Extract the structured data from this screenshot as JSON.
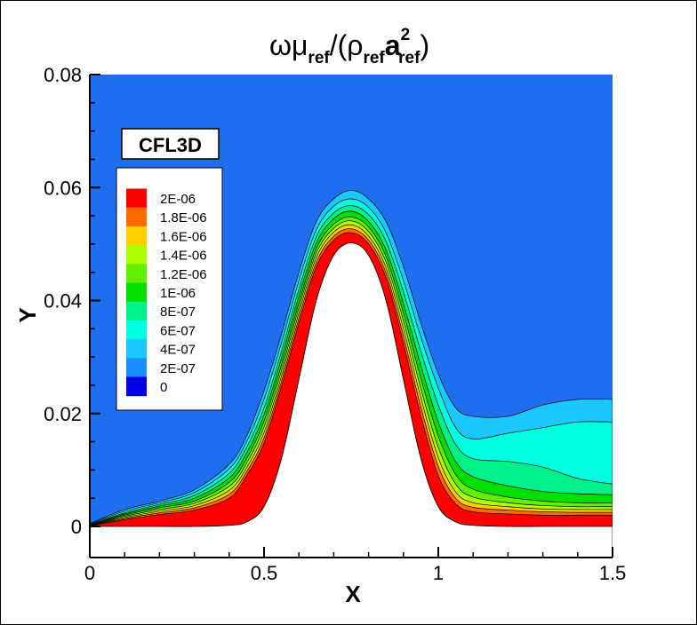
{
  "chart_data": {
    "type": "contour",
    "title": {
      "parts": [
        {
          "text": "ωμ",
          "style": "main"
        },
        {
          "text": "ref",
          "style": "sub"
        },
        {
          "text": "/(ρ",
          "style": "main"
        },
        {
          "text": "ref",
          "style": "sub"
        },
        {
          "text": "a",
          "style": "bold"
        },
        {
          "text": "2",
          "style": "sup"
        },
        {
          "text": "ref",
          "style": "sub"
        },
        {
          "text": ")",
          "style": "main"
        }
      ]
    },
    "xlabel": "X",
    "ylabel": "Y",
    "xlim": [
      0,
      1.5
    ],
    "ylim": [
      0,
      0.08
    ],
    "xticks": [
      {
        "value": 0,
        "label": "0"
      },
      {
        "value": 0.5,
        "label": "0.5"
      },
      {
        "value": 1,
        "label": "1"
      },
      {
        "value": 1.5,
        "label": "1.5"
      }
    ],
    "yticks": [
      {
        "value": 0,
        "label": "0"
      },
      {
        "value": 0.02,
        "label": "0.02"
      },
      {
        "value": 0.04,
        "label": "0.04"
      },
      {
        "value": 0.06,
        "label": "0.06"
      },
      {
        "value": 0.08,
        "label": "0.08"
      }
    ],
    "annotation": "CFL3D",
    "legend": {
      "placement": "upper-left",
      "levels": [
        {
          "label": "2E-06",
          "value": 2e-06,
          "color": "#ff0000"
        },
        {
          "label": "1.8E-06",
          "value": 1.8e-06,
          "color": "#ff6a00"
        },
        {
          "label": "1.6E-06",
          "value": 1.6e-06,
          "color": "#ffd000"
        },
        {
          "label": "1.4E-06",
          "value": 1.4e-06,
          "color": "#b0ff00"
        },
        {
          "label": "1.2E-06",
          "value": 1.2e-06,
          "color": "#60f000"
        },
        {
          "label": "1E-06",
          "value": 1e-06,
          "color": "#00e000"
        },
        {
          "label": "8E-07",
          "value": 8e-07,
          "color": "#00f08a"
        },
        {
          "label": "6E-07",
          "value": 6e-07,
          "color": "#00ffe0"
        },
        {
          "label": "4E-07",
          "value": 4e-07,
          "color": "#1ac8ff"
        },
        {
          "label": "2E-07",
          "value": 2e-07,
          "color": "#1a8cff"
        },
        {
          "label": "0",
          "value": 0,
          "color": "#0000e0"
        }
      ]
    },
    "background_color": "#1f6eef",
    "wall_profile": {
      "x": [
        0,
        0.1,
        0.2,
        0.3,
        0.4,
        0.45,
        0.5,
        0.55,
        0.6,
        0.65,
        0.7,
        0.75,
        0.8,
        0.85,
        0.9,
        0.95,
        1.0,
        1.05,
        1.1,
        1.2,
        1.3,
        1.4,
        1.5
      ],
      "y": [
        0,
        0,
        0,
        0,
        0.0002,
        0.0008,
        0.0035,
        0.012,
        0.026,
        0.04,
        0.048,
        0.0502,
        0.048,
        0.04,
        0.026,
        0.012,
        0.0035,
        0.0008,
        0.0002,
        0,
        0,
        0,
        0
      ]
    },
    "contour_bands": [
      {
        "level": "2E-07",
        "color": "#1ac8ff",
        "top": [
          [
            0,
            0.0005
          ],
          [
            0.1,
            0.003
          ],
          [
            0.2,
            0.0045
          ],
          [
            0.3,
            0.0065
          ],
          [
            0.4,
            0.011
          ],
          [
            0.45,
            0.016
          ],
          [
            0.5,
            0.024
          ],
          [
            0.55,
            0.034
          ],
          [
            0.6,
            0.045
          ],
          [
            0.65,
            0.054
          ],
          [
            0.7,
            0.058
          ],
          [
            0.75,
            0.0595
          ],
          [
            0.8,
            0.058
          ],
          [
            0.85,
            0.054
          ],
          [
            0.9,
            0.046
          ],
          [
            0.95,
            0.036
          ],
          [
            1.0,
            0.027
          ],
          [
            1.05,
            0.021
          ],
          [
            1.1,
            0.0195
          ],
          [
            1.2,
            0.0195
          ],
          [
            1.3,
            0.0215
          ],
          [
            1.4,
            0.0225
          ],
          [
            1.5,
            0.0225
          ]
        ]
      },
      {
        "level": "4E-07",
        "color": "#00ffe0",
        "top": [
          [
            0,
            0.0004
          ],
          [
            0.1,
            0.0027
          ],
          [
            0.2,
            0.0042
          ],
          [
            0.3,
            0.006
          ],
          [
            0.4,
            0.0102
          ],
          [
            0.45,
            0.015
          ],
          [
            0.5,
            0.0225
          ],
          [
            0.55,
            0.0325
          ],
          [
            0.6,
            0.0435
          ],
          [
            0.65,
            0.0525
          ],
          [
            0.7,
            0.0567
          ],
          [
            0.75,
            0.058
          ],
          [
            0.8,
            0.0565
          ],
          [
            0.85,
            0.052
          ],
          [
            0.9,
            0.0435
          ],
          [
            0.95,
            0.0335
          ],
          [
            1.0,
            0.0245
          ],
          [
            1.05,
            0.0175
          ],
          [
            1.1,
            0.0155
          ],
          [
            1.2,
            0.0165
          ],
          [
            1.3,
            0.0175
          ],
          [
            1.4,
            0.0185
          ],
          [
            1.5,
            0.0185
          ]
        ]
      },
      {
        "level": "6E-07",
        "color": "#00f08a",
        "top": [
          [
            0,
            0.0003
          ],
          [
            0.1,
            0.0024
          ],
          [
            0.2,
            0.0039
          ],
          [
            0.3,
            0.0055
          ],
          [
            0.4,
            0.0094
          ],
          [
            0.45,
            0.014
          ],
          [
            0.5,
            0.021
          ],
          [
            0.55,
            0.031
          ],
          [
            0.6,
            0.042
          ],
          [
            0.65,
            0.0513
          ],
          [
            0.7,
            0.0555
          ],
          [
            0.75,
            0.0568
          ],
          [
            0.8,
            0.0552
          ],
          [
            0.85,
            0.0505
          ],
          [
            0.9,
            0.0415
          ],
          [
            0.95,
            0.031
          ],
          [
            1.0,
            0.0215
          ],
          [
            1.05,
            0.0145
          ],
          [
            1.1,
            0.012
          ],
          [
            1.2,
            0.0115
          ],
          [
            1.3,
            0.0105
          ],
          [
            1.4,
            0.0085
          ],
          [
            1.5,
            0.0075
          ]
        ]
      },
      {
        "level": "8E-07",
        "color": "#00e000",
        "top": [
          [
            0,
            0.00025
          ],
          [
            0.1,
            0.0022
          ],
          [
            0.2,
            0.0036
          ],
          [
            0.3,
            0.005
          ],
          [
            0.4,
            0.0086
          ],
          [
            0.45,
            0.013
          ],
          [
            0.5,
            0.0198
          ],
          [
            0.55,
            0.0298
          ],
          [
            0.6,
            0.0408
          ],
          [
            0.65,
            0.0502
          ],
          [
            0.7,
            0.0545
          ],
          [
            0.75,
            0.0558
          ],
          [
            0.8,
            0.054
          ],
          [
            0.85,
            0.049
          ],
          [
            0.9,
            0.0395
          ],
          [
            0.95,
            0.0285
          ],
          [
            1.0,
            0.0185
          ],
          [
            1.05,
            0.0115
          ],
          [
            1.1,
            0.0088
          ],
          [
            1.2,
            0.0072
          ],
          [
            1.3,
            0.0062
          ],
          [
            1.4,
            0.0058
          ],
          [
            1.5,
            0.0056
          ]
        ]
      },
      {
        "level": "1E-06",
        "color": "#60f000",
        "top": [
          [
            0,
            0.0002
          ],
          [
            0.1,
            0.002
          ],
          [
            0.2,
            0.0033
          ],
          [
            0.3,
            0.0045
          ],
          [
            0.4,
            0.0078
          ],
          [
            0.45,
            0.012
          ],
          [
            0.5,
            0.0186
          ],
          [
            0.55,
            0.0286
          ],
          [
            0.6,
            0.0396
          ],
          [
            0.65,
            0.0492
          ],
          [
            0.7,
            0.0535
          ],
          [
            0.75,
            0.0548
          ],
          [
            0.8,
            0.053
          ],
          [
            0.85,
            0.0478
          ],
          [
            0.9,
            0.0378
          ],
          [
            0.95,
            0.0262
          ],
          [
            1.0,
            0.016
          ],
          [
            1.05,
            0.0092
          ],
          [
            1.1,
            0.0066
          ],
          [
            1.2,
            0.0052
          ],
          [
            1.3,
            0.0045
          ],
          [
            1.4,
            0.0042
          ],
          [
            1.5,
            0.0042
          ]
        ]
      },
      {
        "level": "1.2E-06",
        "color": "#b0ff00",
        "top": [
          [
            0,
            0.00015
          ],
          [
            0.1,
            0.0018
          ],
          [
            0.2,
            0.003
          ],
          [
            0.3,
            0.0041
          ],
          [
            0.4,
            0.0071
          ],
          [
            0.45,
            0.0112
          ],
          [
            0.5,
            0.0176
          ],
          [
            0.55,
            0.0276
          ],
          [
            0.6,
            0.0387
          ],
          [
            0.65,
            0.0484
          ],
          [
            0.7,
            0.0528
          ],
          [
            0.75,
            0.0541
          ],
          [
            0.8,
            0.0522
          ],
          [
            0.85,
            0.0468
          ],
          [
            0.9,
            0.0364
          ],
          [
            0.95,
            0.0244
          ],
          [
            1.0,
            0.014
          ],
          [
            1.05,
            0.0075
          ],
          [
            1.1,
            0.0052
          ],
          [
            1.2,
            0.0042
          ],
          [
            1.3,
            0.0037
          ],
          [
            1.4,
            0.0035
          ],
          [
            1.5,
            0.0035
          ]
        ]
      },
      {
        "level": "1.4E-06",
        "color": "#ffd000",
        "top": [
          [
            0,
            0.0001
          ],
          [
            0.1,
            0.0016
          ],
          [
            0.2,
            0.0027
          ],
          [
            0.3,
            0.0037
          ],
          [
            0.4,
            0.0064
          ],
          [
            0.45,
            0.0104
          ],
          [
            0.5,
            0.0166
          ],
          [
            0.55,
            0.0266
          ],
          [
            0.6,
            0.0378
          ],
          [
            0.65,
            0.0476
          ],
          [
            0.7,
            0.0521
          ],
          [
            0.75,
            0.0534
          ],
          [
            0.8,
            0.0514
          ],
          [
            0.85,
            0.0458
          ],
          [
            0.9,
            0.035
          ],
          [
            0.95,
            0.0228
          ],
          [
            1.0,
            0.0122
          ],
          [
            1.05,
            0.0061
          ],
          [
            1.1,
            0.0042
          ],
          [
            1.2,
            0.0035
          ],
          [
            1.3,
            0.0031
          ],
          [
            1.4,
            0.003
          ],
          [
            1.5,
            0.003
          ]
        ]
      },
      {
        "level": "1.6E-06",
        "color": "#ff6a00",
        "top": [
          [
            0,
            8e-05
          ],
          [
            0.1,
            0.0014
          ],
          [
            0.2,
            0.0024
          ],
          [
            0.3,
            0.0033
          ],
          [
            0.4,
            0.0057
          ],
          [
            0.45,
            0.0097
          ],
          [
            0.5,
            0.0157
          ],
          [
            0.55,
            0.0257
          ],
          [
            0.6,
            0.0369
          ],
          [
            0.65,
            0.0468
          ],
          [
            0.7,
            0.0514
          ],
          [
            0.75,
            0.0527
          ],
          [
            0.8,
            0.0507
          ],
          [
            0.85,
            0.0449
          ],
          [
            0.9,
            0.0337
          ],
          [
            0.95,
            0.0212
          ],
          [
            1.0,
            0.0106
          ],
          [
            1.05,
            0.005
          ],
          [
            1.1,
            0.0034
          ],
          [
            1.2,
            0.0029
          ],
          [
            1.3,
            0.0026
          ],
          [
            1.4,
            0.0025
          ],
          [
            1.5,
            0.0025
          ]
        ]
      },
      {
        "level": "2E-06",
        "color": "#ff0000",
        "top": [
          [
            0,
            5e-05
          ],
          [
            0.1,
            0.0012
          ],
          [
            0.2,
            0.0021
          ],
          [
            0.3,
            0.0029
          ],
          [
            0.4,
            0.005
          ],
          [
            0.45,
            0.009
          ],
          [
            0.5,
            0.0148
          ],
          [
            0.55,
            0.0248
          ],
          [
            0.6,
            0.036
          ],
          [
            0.65,
            0.046
          ],
          [
            0.7,
            0.0507
          ],
          [
            0.75,
            0.052
          ],
          [
            0.8,
            0.05
          ],
          [
            0.85,
            0.044
          ],
          [
            0.9,
            0.0324
          ],
          [
            0.95,
            0.0196
          ],
          [
            1.0,
            0.009
          ],
          [
            1.05,
            0.004
          ],
          [
            1.1,
            0.0026
          ],
          [
            1.2,
            0.0022
          ],
          [
            1.3,
            0.002
          ],
          [
            1.4,
            0.002
          ],
          [
            1.5,
            0.002
          ]
        ]
      }
    ]
  }
}
